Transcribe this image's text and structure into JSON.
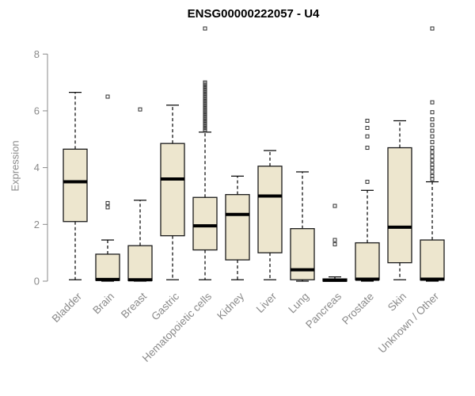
{
  "chart_data": {
    "type": "boxplot",
    "title": "ENSG00000222057 - U4",
    "ylabel": "Expression",
    "yticks": [
      0,
      2,
      4,
      6,
      8
    ],
    "ylim": [
      0,
      8.9
    ],
    "grid": false,
    "legend": "none",
    "box_fill": "#EDE6CE",
    "box_stroke": "#1a1a1a",
    "axis_color": "#8a8a8a",
    "outlier_color": "#2f2f2f",
    "categories": [
      {
        "label": "Bladder",
        "low": 0.05,
        "q1": 2.1,
        "median": 3.5,
        "q3": 4.65,
        "high": 6.65,
        "outliers": []
      },
      {
        "label": "Brain",
        "low": 0.0,
        "q1": 0.03,
        "median": 0.06,
        "q3": 0.95,
        "high": 1.45,
        "outliers": [
          2.6,
          2.75,
          6.5
        ]
      },
      {
        "label": "Breast",
        "low": 0.0,
        "q1": 0.02,
        "median": 0.05,
        "q3": 1.25,
        "high": 2.85,
        "outliers": [
          6.05
        ]
      },
      {
        "label": "Gastric",
        "low": 0.05,
        "q1": 1.6,
        "median": 3.6,
        "q3": 4.85,
        "high": 6.2,
        "outliers": []
      },
      {
        "label": "Hematopoietic cells",
        "low": 0.05,
        "q1": 1.1,
        "median": 1.95,
        "q3": 2.95,
        "high": 5.25,
        "outliers": [
          5.3,
          5.35,
          5.4,
          5.45,
          5.5,
          5.55,
          5.6,
          5.65,
          5.7,
          5.75,
          5.8,
          5.85,
          5.9,
          5.95,
          6.0,
          6.05,
          6.1,
          6.15,
          6.2,
          6.25,
          6.3,
          6.35,
          6.4,
          6.45,
          6.5,
          6.55,
          6.6,
          6.65,
          6.7,
          6.75,
          6.8,
          6.85,
          6.9,
          6.95,
          7.0,
          8.9
        ]
      },
      {
        "label": "Kidney",
        "low": 0.05,
        "q1": 0.75,
        "median": 2.35,
        "q3": 3.05,
        "high": 3.7,
        "outliers": []
      },
      {
        "label": "Liver",
        "low": 0.05,
        "q1": 1.0,
        "median": 3.0,
        "q3": 4.05,
        "high": 4.6,
        "outliers": []
      },
      {
        "label": "Lung",
        "low": 0.0,
        "q1": 0.05,
        "median": 0.4,
        "q3": 1.85,
        "high": 3.85,
        "outliers": []
      },
      {
        "label": "Pancreas",
        "low": 0.0,
        "q1": 0.0,
        "median": 0.03,
        "q3": 0.08,
        "high": 0.15,
        "outliers": [
          1.3,
          1.45,
          2.65
        ]
      },
      {
        "label": "Prostate",
        "low": 0.0,
        "q1": 0.05,
        "median": 0.07,
        "q3": 1.35,
        "high": 3.2,
        "outliers": [
          3.5,
          4.7,
          5.1,
          5.4,
          5.65
        ]
      },
      {
        "label": "Skin",
        "low": 0.05,
        "q1": 0.65,
        "median": 1.9,
        "q3": 4.7,
        "high": 5.65,
        "outliers": []
      },
      {
        "label": "Unknown / Other",
        "low": 0.0,
        "q1": 0.04,
        "median": 0.07,
        "q3": 1.45,
        "high": 3.5,
        "outliers": [
          3.6,
          3.7,
          3.85,
          4.0,
          4.1,
          4.25,
          4.4,
          4.55,
          4.7,
          4.9,
          5.1,
          5.3,
          5.5,
          5.7,
          5.95,
          6.3,
          8.9
        ]
      }
    ]
  }
}
